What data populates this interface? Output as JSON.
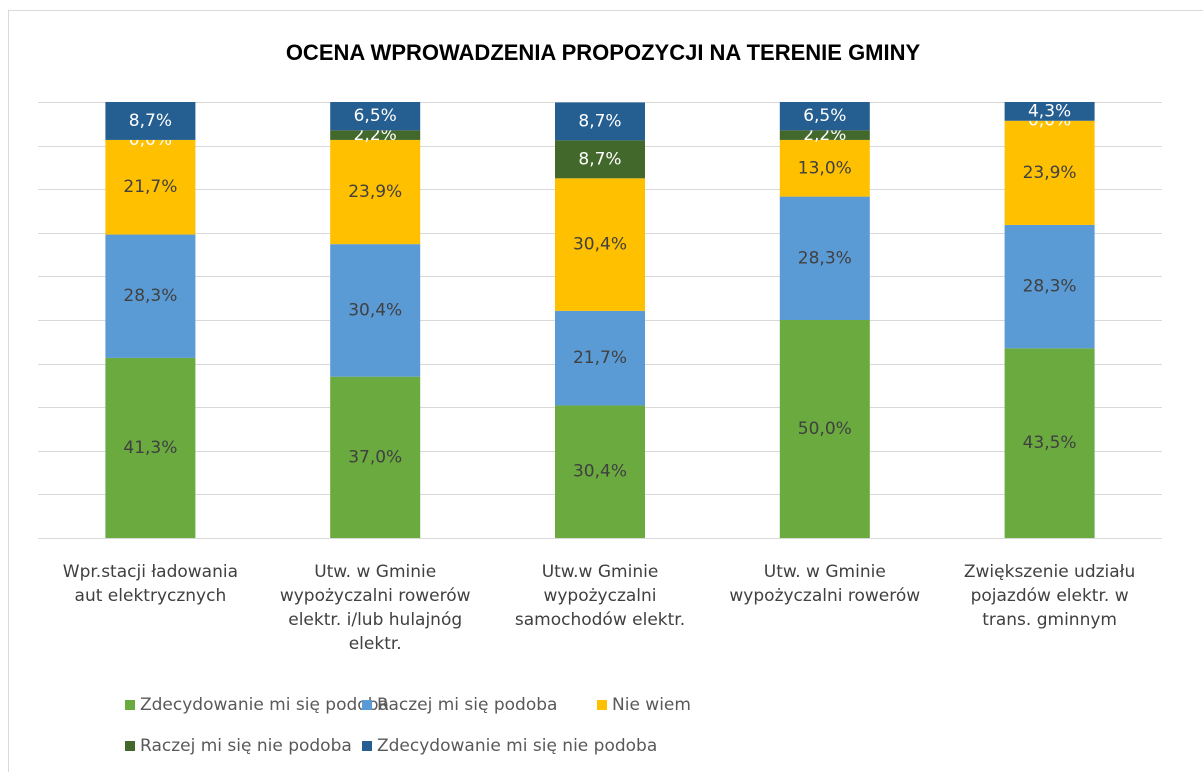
{
  "chart_data": {
    "type": "stacked_bar_100",
    "title": "OCENA WPROWADZENIA PROPOZYCJI NA TERENIE GMINY",
    "categories": [
      "Wpr.stacji ładowania\naut elektrycznych",
      "Utw. w Gminie\nwypożyczalni rowerów\nelektr. i/lub hulajnóg\nelektr.",
      "Utw.w Gminie\nwypożyczalni\nsamochodów elektr.",
      "Utw. w Gminie\nwypożyczalni rowerów",
      "Zwiększenie udziału\npojazdów elektr. w\ntrans. gminnym"
    ],
    "series": [
      {
        "name": "Zdecydowanie mi się podoba",
        "color": "#6aaa3f",
        "values": [
          41.3,
          37.0,
          30.4,
          50.0,
          43.5
        ],
        "value_labels": [
          "41,3%",
          "37,0%",
          "30,4%",
          "50,0%",
          "43,5%"
        ]
      },
      {
        "name": "Raczej mi się podoba",
        "color": "#5b9bd5",
        "values": [
          28.3,
          30.4,
          21.7,
          28.3,
          28.3
        ],
        "value_labels": [
          "28,3%",
          "30,4%",
          "21,7%",
          "28,3%",
          "28,3%"
        ]
      },
      {
        "name": "Nie wiem",
        "color": "#ffc000",
        "values": [
          21.7,
          23.9,
          30.4,
          13.0,
          23.9
        ],
        "value_labels": [
          "21,7%",
          "23,9%",
          "30,4%",
          "13,0%",
          "23,9%"
        ]
      },
      {
        "name": "Raczej mi się nie podoba",
        "color": "#43682b",
        "values": [
          0.0,
          2.2,
          8.7,
          2.2,
          0.0
        ],
        "value_labels": [
          "0,0%",
          "2,2%",
          "8,7%",
          "2,2%",
          "0,0%"
        ]
      },
      {
        "name": "Zdecydowanie mi się nie podoba",
        "color": "#255e91",
        "values": [
          8.7,
          6.5,
          8.7,
          6.5,
          4.3
        ],
        "value_labels": [
          "8,7%",
          "6,5%",
          "8,7%",
          "6,5%",
          "4,3%"
        ]
      }
    ],
    "ylim": [
      0,
      100
    ],
    "yticks": [
      0,
      10,
      20,
      30,
      40,
      50,
      60,
      70,
      80,
      90,
      100
    ],
    "grid": true
  }
}
